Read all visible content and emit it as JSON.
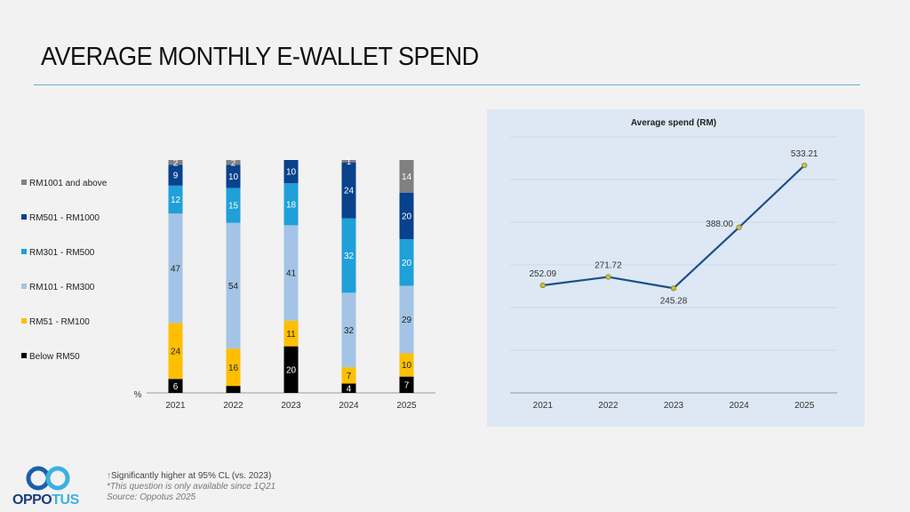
{
  "title": "AVERAGE MONTHLY E-WALLET SPEND",
  "colors": {
    "RM1001 and above": "#808080",
    "RM501 - RM1000": "#08418c",
    "RM301 - RM500": "#1fa0d8",
    "RM101 - RM300": "#a3c4e6",
    "RM51 - RM100": "#fdbf00",
    "Below RM50": "#000000",
    "line": "#1b4f8a",
    "marker": "#c8c038",
    "accent_rule": "#6aaed0",
    "sig_arrow": "#2eaa4a"
  },
  "chart_data": [
    {
      "type": "bar",
      "stacked": true,
      "title": "",
      "xlabel": "",
      "ylabel": "%",
      "ylim": [
        0,
        100
      ],
      "categories": [
        "2021",
        "2022",
        "2023",
        "2024",
        "2025"
      ],
      "legend_position": "left",
      "series": [
        {
          "name": "Below RM50",
          "values": [
            6,
            3,
            20,
            4,
            7
          ],
          "labels": [
            "6",
            "",
            "20",
            "4",
            "7"
          ],
          "label_color": "#ffffff"
        },
        {
          "name": "RM51 - RM100",
          "values": [
            24,
            16,
            11,
            7,
            10
          ],
          "labels": [
            "24",
            "16",
            "11",
            "7",
            "10"
          ],
          "label_color": "#222222"
        },
        {
          "name": "RM101 - RM300",
          "values": [
            47,
            54,
            41,
            32,
            29
          ],
          "labels": [
            "47",
            "54",
            "41",
            "32",
            "29"
          ],
          "label_color": "#222222"
        },
        {
          "name": "RM301 - RM500",
          "values": [
            12,
            15,
            18,
            32,
            20
          ],
          "labels": [
            "12",
            "15",
            "18",
            "32",
            "20"
          ],
          "label_color": "#ffffff"
        },
        {
          "name": "RM501 - RM1000",
          "values": [
            9,
            10,
            10,
            24,
            20
          ],
          "labels": [
            "9",
            "10",
            "10",
            "24",
            "20"
          ],
          "label_color": "#ffffff"
        },
        {
          "name": "RM1001 and above",
          "values": [
            2,
            2,
            0,
            1,
            14
          ],
          "labels": [
            "2",
            "2",
            "",
            "1",
            "14"
          ],
          "label_color": "#ffffff"
        }
      ]
    },
    {
      "type": "line",
      "title": "Average spend (RM)",
      "xlabel": "",
      "ylabel": "",
      "ylim": [
        0,
        600
      ],
      "grid": true,
      "x": [
        "2021",
        "2022",
        "2023",
        "2024",
        "2025"
      ],
      "series": [
        {
          "name": "Average spend (RM)",
          "values": [
            252.09,
            271.72,
            245.28,
            388.0,
            533.21
          ],
          "labels": [
            "252.09",
            "271.72",
            "245.28",
            "388.00",
            "533.21"
          ]
        }
      ]
    }
  ],
  "footer": {
    "significance": "Significantly higher at 95% CL (vs. 2023)",
    "note": "*This question is only available since 1Q21",
    "source": "Source: Oppotus 2025"
  },
  "logo": {
    "part1": "OPPO",
    "part2": "TUS"
  }
}
